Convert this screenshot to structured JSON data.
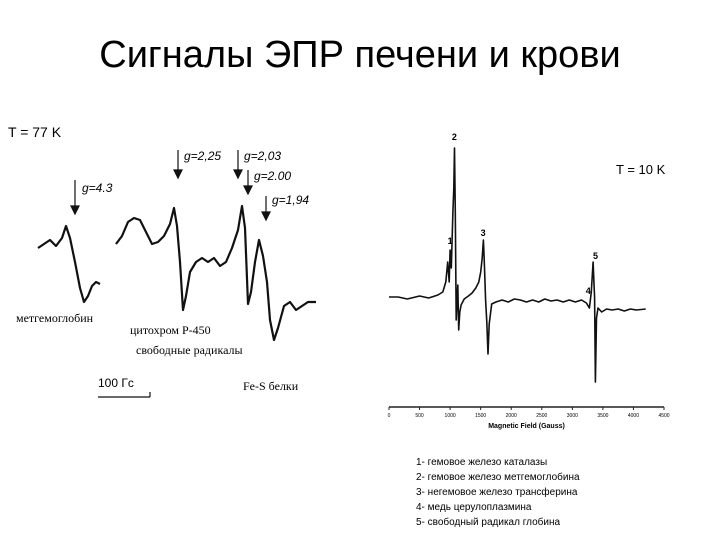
{
  "slide": {
    "title": "Сигналы ЭПР печени и крови",
    "temp_left": "T = 77 K",
    "temp_right": "T = 10 K"
  },
  "left_spectrum": {
    "g_labels": [
      "g=4.3",
      "g=2,25",
      "g=2,03",
      "g=2.00",
      "g=1,94"
    ],
    "assignments": [
      "метгемоглобин",
      "цитохром Р-450",
      "свободные радикалы",
      "Fe-S белки"
    ],
    "scale_bar": "100 Гс"
  },
  "chart_data": {
    "type": "line",
    "title": "",
    "xlabel": "Magnetic Field (Gauss)",
    "ylabel": "",
    "xlim": [
      0,
      4500
    ],
    "x_ticks": [
      0,
      500,
      1000,
      1500,
      2000,
      2500,
      3000,
      3500,
      4000,
      4500
    ],
    "x_tick_labels": [
      "0",
      "500",
      "1000",
      "1500",
      "2000",
      "2500",
      "3000",
      "3500",
      "4000",
      "4500"
    ],
    "peak_labels": [
      {
        "label": "1",
        "field": 1000
      },
      {
        "label": "2",
        "field": 1070
      },
      {
        "label": "3",
        "field": 1540
      },
      {
        "label": "4",
        "field": 3260
      },
      {
        "label": "5",
        "field": 3380
      }
    ],
    "legend": [
      "1- гемовое железо  каталазы",
      "2- гемовое железо  метгемоглобина",
      "3- негемовое железо трансферина",
      "4- медь церулоплазмина",
      "5- свободный радикал глобина"
    ]
  }
}
